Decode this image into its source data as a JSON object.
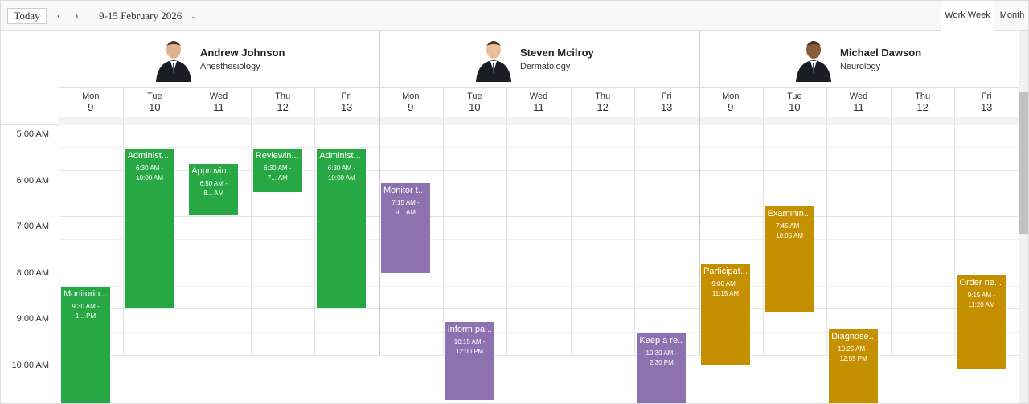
{
  "toolbar": {
    "today": "Today",
    "prev": "‹",
    "next": "›",
    "date_range": "9-15 February 2026",
    "views": [
      "Work Week",
      "Month"
    ]
  },
  "times": [
    "5:00 AM",
    "6:00 AM",
    "7:00 AM",
    "8:00 AM",
    "9:00 AM",
    "10:00 AM"
  ],
  "resources": [
    {
      "name": "Andrew Johnson",
      "department": "Anesthesiology",
      "color": "#27a844",
      "days": [
        {
          "weekday": "Mon",
          "date": "9",
          "events": [
            {
              "title": "Monitorin...",
              "time": "9:30 AM - 1... PM"
            }
          ]
        },
        {
          "weekday": "Tue",
          "date": "10",
          "events": [
            {
              "title": "Administ...",
              "time": "6:30 AM - 10:00 AM"
            }
          ]
        },
        {
          "weekday": "Wed",
          "date": "11",
          "events": [
            {
              "title": "Approvin...",
              "time": "6:50 AM - 8... AM"
            }
          ]
        },
        {
          "weekday": "Thu",
          "date": "12",
          "events": [
            {
              "title": "Reviewin...",
              "time": "6:30 AM - 7... AM"
            }
          ]
        },
        {
          "weekday": "Fri",
          "date": "13",
          "events": [
            {
              "title": "Administ...",
              "time": "6:30 AM - 10:00 AM"
            }
          ]
        }
      ]
    },
    {
      "name": "Steven Mcilroy",
      "department": "Dermatology",
      "color": "#8e72b0",
      "days": [
        {
          "weekday": "Mon",
          "date": "9",
          "events": [
            {
              "title": "Monitor t...",
              "time": "7:15 AM - 9... AM"
            }
          ]
        },
        {
          "weekday": "Tue",
          "date": "10",
          "events": [
            {
              "title": "Inform pa...",
              "time": "10:15 AM - 12:00 PM"
            }
          ]
        },
        {
          "weekday": "Wed",
          "date": "11",
          "events": []
        },
        {
          "weekday": "Thu",
          "date": "12",
          "events": []
        },
        {
          "weekday": "Fri",
          "date": "13",
          "events": [
            {
              "title": "Keep a re...",
              "time": "10:30 AM - 2:30 PM"
            }
          ]
        }
      ]
    },
    {
      "name": "Michael Dawson",
      "department": "Neurology",
      "color": "#c49000",
      "days": [
        {
          "weekday": "Mon",
          "date": "9",
          "events": [
            {
              "title": "Participat...",
              "time": "9:00 AM - 11:15 AM"
            }
          ]
        },
        {
          "weekday": "Tue",
          "date": "10",
          "events": [
            {
              "title": "Examinin...",
              "time": "7:45 AM - 10:05 AM"
            }
          ]
        },
        {
          "weekday": "Wed",
          "date": "11",
          "events": [
            {
              "title": "Diagnose...",
              "time": "10:25 AM - 12:55 PM"
            }
          ]
        },
        {
          "weekday": "Thu",
          "date": "12",
          "events": []
        },
        {
          "weekday": "Fri",
          "date": "13",
          "events": [
            {
              "title": "Order ne...",
              "time": "9:15 AM - 11:20 AM"
            }
          ]
        }
      ]
    }
  ]
}
